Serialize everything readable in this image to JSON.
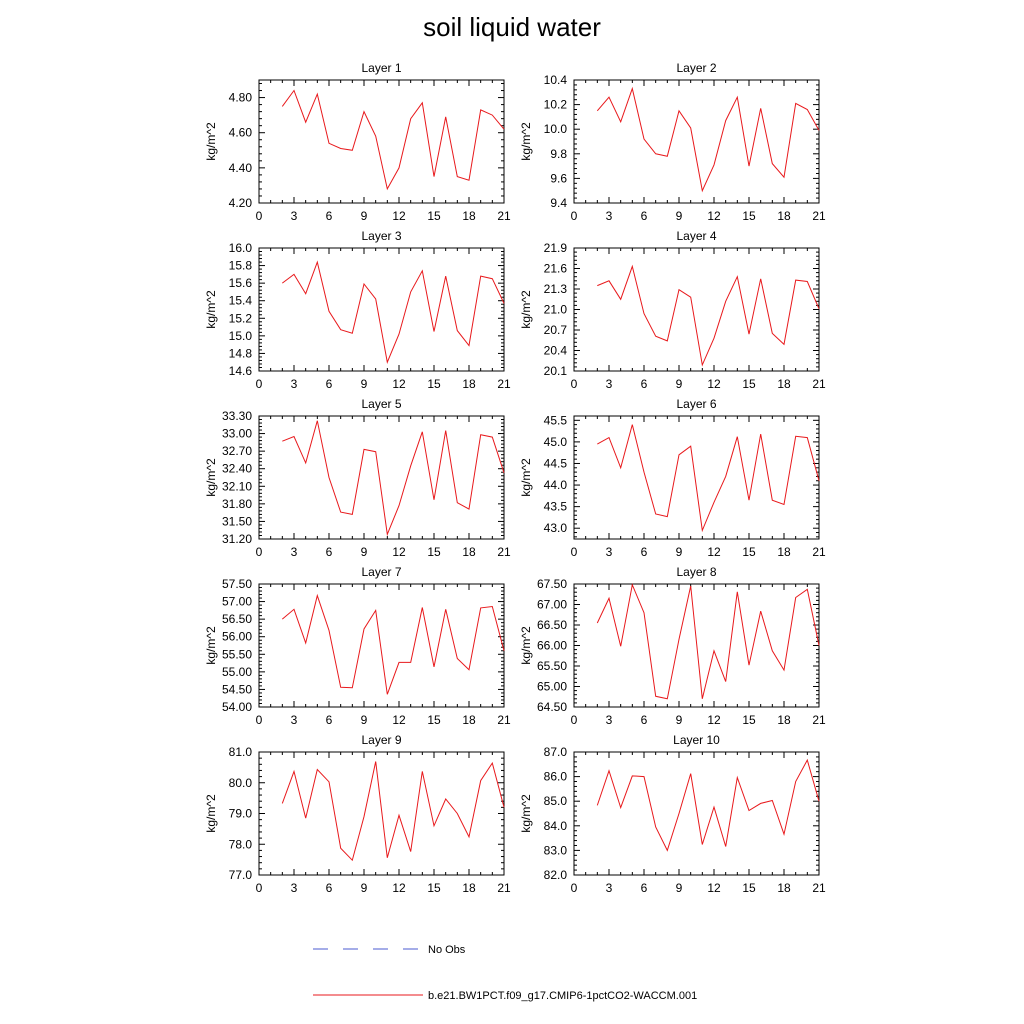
{
  "title": "soil liquid water",
  "legend": {
    "entries": [
      {
        "label": "No Obs",
        "color": "#4b5bd0",
        "style": "dashed"
      },
      {
        "label": "b.e21.BW1PCT.f09_g17.CMIP6-1pctCO2-WACCM.001",
        "color": "#e8191c",
        "style": "solid"
      }
    ]
  },
  "chart_data": [
    {
      "type": "line",
      "title": "Layer 1",
      "ylabel": "kg/m^2",
      "xlim": [
        0,
        21
      ],
      "ylim": [
        4.2,
        4.9
      ],
      "xticks": [
        "0",
        "3",
        "6",
        "9",
        "12",
        "15",
        "18",
        "21"
      ],
      "yticks": [
        "4.20",
        "4.40",
        "4.60",
        "4.80"
      ],
      "ytick_values": [
        4.2,
        4.4,
        4.6,
        4.8
      ],
      "series": [
        {
          "color": "#e8191c",
          "x": [
            2,
            3,
            4,
            5,
            6,
            7,
            8,
            9,
            10,
            11,
            12,
            13,
            14,
            15,
            16,
            17,
            18,
            19,
            20,
            21
          ],
          "values": [
            4.75,
            4.84,
            4.66,
            4.82,
            4.54,
            4.51,
            4.5,
            4.72,
            4.58,
            4.28,
            4.4,
            4.68,
            4.77,
            4.35,
            4.69,
            4.35,
            4.33,
            4.73,
            4.7,
            4.62
          ]
        }
      ]
    },
    {
      "type": "line",
      "title": "Layer 2",
      "ylabel": "kg/m^2",
      "xlim": [
        0,
        21
      ],
      "ylim": [
        9.4,
        10.4
      ],
      "xticks": [
        "0",
        "3",
        "6",
        "9",
        "12",
        "15",
        "18",
        "21"
      ],
      "yticks": [
        "9.4",
        "9.6",
        "9.8",
        "10.0",
        "10.2",
        "10.4"
      ],
      "ytick_values": [
        9.4,
        9.6,
        9.8,
        10.0,
        10.2,
        10.4
      ],
      "series": [
        {
          "color": "#e8191c",
          "x": [
            2,
            3,
            4,
            5,
            6,
            7,
            8,
            9,
            10,
            11,
            12,
            13,
            14,
            15,
            16,
            17,
            18,
            19,
            20,
            21
          ],
          "values": [
            10.15,
            10.26,
            10.06,
            10.33,
            9.92,
            9.8,
            9.78,
            10.15,
            10.01,
            9.5,
            9.71,
            10.07,
            10.26,
            9.7,
            10.17,
            9.72,
            9.61,
            10.21,
            10.16,
            9.99
          ]
        }
      ]
    },
    {
      "type": "line",
      "title": "Layer 3",
      "ylabel": "kg/m^2",
      "xlim": [
        0,
        21
      ],
      "ylim": [
        14.6,
        16.0
      ],
      "xticks": [
        "0",
        "3",
        "6",
        "9",
        "12",
        "15",
        "18",
        "21"
      ],
      "yticks": [
        "14.6",
        "14.8",
        "15.0",
        "15.2",
        "15.4",
        "15.6",
        "15.8",
        "16.0"
      ],
      "ytick_values": [
        14.6,
        14.8,
        15.0,
        15.2,
        15.4,
        15.6,
        15.8,
        16.0
      ],
      "series": [
        {
          "color": "#e8191c",
          "x": [
            2,
            3,
            4,
            5,
            6,
            7,
            8,
            9,
            10,
            11,
            12,
            13,
            14,
            15,
            16,
            17,
            18,
            19,
            20,
            21
          ],
          "values": [
            15.6,
            15.7,
            15.48,
            15.84,
            15.28,
            15.07,
            15.03,
            15.59,
            15.42,
            14.7,
            15.02,
            15.5,
            15.74,
            15.05,
            15.68,
            15.06,
            14.89,
            15.68,
            15.65,
            15.37
          ]
        }
      ]
    },
    {
      "type": "line",
      "title": "Layer 4",
      "ylabel": "kg/m^2",
      "xlim": [
        0,
        21
      ],
      "ylim": [
        20.1,
        21.9
      ],
      "xticks": [
        "0",
        "3",
        "6",
        "9",
        "12",
        "15",
        "18",
        "21"
      ],
      "yticks": [
        "20.1",
        "20.4",
        "20.7",
        "21.0",
        "21.3",
        "21.6",
        "21.9"
      ],
      "ytick_values": [
        20.1,
        20.4,
        20.7,
        21.0,
        21.3,
        21.6,
        21.9
      ],
      "series": [
        {
          "color": "#e8191c",
          "x": [
            2,
            3,
            4,
            5,
            6,
            7,
            8,
            9,
            10,
            11,
            12,
            13,
            14,
            15,
            16,
            17,
            18,
            19,
            20,
            21
          ],
          "values": [
            21.35,
            21.42,
            21.15,
            21.63,
            20.94,
            20.61,
            20.54,
            21.29,
            21.18,
            20.19,
            20.58,
            21.12,
            21.48,
            20.64,
            21.45,
            20.65,
            20.49,
            21.43,
            21.41,
            21.01
          ]
        }
      ]
    },
    {
      "type": "line",
      "title": "Layer 5",
      "ylabel": "kg/m^2",
      "xlim": [
        0,
        21
      ],
      "ylim": [
        31.2,
        33.3
      ],
      "xticks": [
        "0",
        "3",
        "6",
        "9",
        "12",
        "15",
        "18",
        "21"
      ],
      "yticks": [
        "31.20",
        "31.50",
        "31.80",
        "32.10",
        "32.40",
        "32.70",
        "33.00",
        "33.30"
      ],
      "ytick_values": [
        31.2,
        31.5,
        31.8,
        32.1,
        32.4,
        32.7,
        33.0,
        33.3
      ],
      "series": [
        {
          "color": "#e8191c",
          "x": [
            2,
            3,
            4,
            5,
            6,
            7,
            8,
            9,
            10,
            11,
            12,
            13,
            14,
            15,
            16,
            17,
            18,
            19,
            20,
            21
          ],
          "values": [
            32.87,
            32.95,
            32.5,
            33.22,
            32.25,
            31.66,
            31.62,
            32.73,
            32.69,
            31.28,
            31.77,
            32.45,
            33.03,
            31.87,
            33.05,
            31.82,
            31.71,
            32.98,
            32.94,
            32.33
          ]
        }
      ]
    },
    {
      "type": "line",
      "title": "Layer 6",
      "ylabel": "kg/m^2",
      "xlim": [
        0,
        21
      ],
      "ylim": [
        42.75,
        45.6
      ],
      "xticks": [
        "0",
        "3",
        "6",
        "9",
        "12",
        "15",
        "18",
        "21"
      ],
      "yticks": [
        "43.0",
        "43.5",
        "44.0",
        "44.5",
        "45.0",
        "45.5"
      ],
      "ytick_values": [
        43.0,
        43.5,
        44.0,
        44.5,
        45.0,
        45.5
      ],
      "series": [
        {
          "color": "#e8191c",
          "x": [
            2,
            3,
            4,
            5,
            6,
            7,
            8,
            9,
            10,
            11,
            12,
            13,
            14,
            15,
            16,
            17,
            18,
            19,
            20,
            21
          ],
          "values": [
            44.95,
            45.1,
            44.4,
            45.4,
            44.3,
            43.33,
            43.27,
            44.7,
            44.9,
            42.95,
            43.6,
            44.2,
            45.12,
            43.65,
            45.18,
            43.65,
            43.55,
            45.13,
            45.1,
            44.1
          ]
        }
      ]
    },
    {
      "type": "line",
      "title": "Layer 7",
      "ylabel": "kg/m^2",
      "xlim": [
        0,
        21
      ],
      "ylim": [
        54.0,
        57.5
      ],
      "xticks": [
        "0",
        "3",
        "6",
        "9",
        "12",
        "15",
        "18",
        "21"
      ],
      "yticks": [
        "54.00",
        "54.50",
        "55.00",
        "55.50",
        "56.00",
        "56.50",
        "57.00",
        "57.50"
      ],
      "ytick_values": [
        54.0,
        54.5,
        55.0,
        55.5,
        56.0,
        56.5,
        57.0,
        57.5
      ],
      "series": [
        {
          "color": "#e8191c",
          "x": [
            2,
            3,
            4,
            5,
            6,
            7,
            8,
            9,
            10,
            11,
            12,
            13,
            14,
            15,
            16,
            17,
            18,
            19,
            20,
            21
          ],
          "values": [
            56.5,
            56.78,
            55.82,
            57.17,
            56.18,
            54.56,
            54.55,
            56.22,
            56.75,
            54.36,
            55.27,
            55.27,
            56.83,
            55.14,
            56.78,
            55.38,
            55.06,
            56.82,
            56.86,
            55.6
          ]
        }
      ]
    },
    {
      "type": "line",
      "title": "Layer 8",
      "ylabel": "kg/m^2",
      "xlim": [
        0,
        21
      ],
      "ylim": [
        64.5,
        67.5
      ],
      "xticks": [
        "0",
        "3",
        "6",
        "9",
        "12",
        "15",
        "18",
        "21"
      ],
      "yticks": [
        "64.50",
        "65.00",
        "65.50",
        "66.00",
        "66.50",
        "67.00",
        "67.50"
      ],
      "ytick_values": [
        64.5,
        65.0,
        65.5,
        66.0,
        66.5,
        67.0,
        67.5
      ],
      "series": [
        {
          "color": "#e8191c",
          "x": [
            2,
            3,
            4,
            5,
            6,
            7,
            8,
            9,
            10,
            11,
            12,
            13,
            14,
            15,
            16,
            17,
            18,
            19,
            20,
            21
          ],
          "values": [
            66.55,
            67.15,
            65.98,
            67.48,
            66.8,
            64.76,
            64.7,
            66.15,
            67.45,
            64.7,
            65.87,
            65.12,
            67.31,
            65.52,
            66.84,
            65.87,
            65.4,
            67.17,
            67.37,
            66.0
          ]
        }
      ]
    },
    {
      "type": "line",
      "title": "Layer 9",
      "ylabel": "kg/m^2",
      "xlim": [
        0,
        21
      ],
      "ylim": [
        77.0,
        81.0
      ],
      "xticks": [
        "0",
        "3",
        "6",
        "9",
        "12",
        "15",
        "18",
        "21"
      ],
      "yticks": [
        "77.0",
        "78.0",
        "79.0",
        "80.0",
        "81.0"
      ],
      "ytick_values": [
        77.0,
        78.0,
        79.0,
        80.0,
        81.0
      ],
      "series": [
        {
          "color": "#e8191c",
          "x": [
            2,
            3,
            4,
            5,
            6,
            7,
            8,
            9,
            10,
            11,
            12,
            13,
            14,
            15,
            16,
            17,
            18,
            19,
            20,
            21
          ],
          "values": [
            79.33,
            80.37,
            78.85,
            80.43,
            80.03,
            77.87,
            77.48,
            78.9,
            80.69,
            77.56,
            78.94,
            77.76,
            80.37,
            78.6,
            79.47,
            79.0,
            78.24,
            80.07,
            80.64,
            79.2
          ]
        }
      ]
    },
    {
      "type": "line",
      "title": "Layer 10",
      "ylabel": "kg/m^2",
      "xlim": [
        0,
        21
      ],
      "ylim": [
        82.0,
        87.0
      ],
      "xticks": [
        "0",
        "3",
        "6",
        "9",
        "12",
        "15",
        "18",
        "21"
      ],
      "yticks": [
        "82.0",
        "83.0",
        "84.0",
        "85.0",
        "86.0",
        "87.0"
      ],
      "ytick_values": [
        82.0,
        83.0,
        84.0,
        85.0,
        86.0,
        87.0
      ],
      "series": [
        {
          "color": "#e8191c",
          "x": [
            2,
            3,
            4,
            5,
            6,
            7,
            8,
            9,
            10,
            11,
            12,
            13,
            14,
            15,
            16,
            17,
            18,
            19,
            20,
            21
          ],
          "values": [
            84.83,
            86.24,
            84.74,
            86.03,
            86.0,
            83.95,
            83.0,
            84.5,
            86.12,
            83.24,
            84.76,
            83.16,
            85.96,
            84.62,
            84.91,
            85.03,
            83.66,
            85.8,
            86.67,
            85.0
          ]
        }
      ]
    }
  ]
}
